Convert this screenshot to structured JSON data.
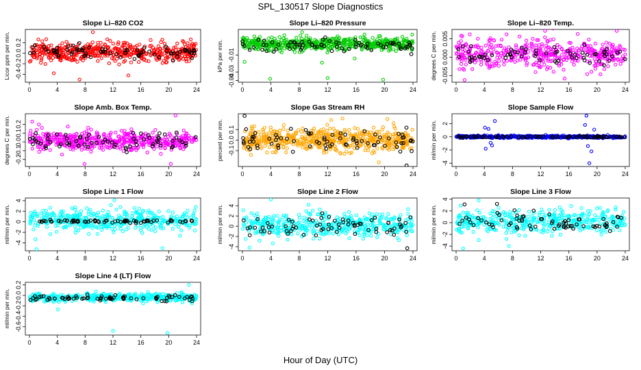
{
  "figure": {
    "title": "SPL_130517  Slope Diagnostics",
    "xlabel": "Hour of Day (UTC)"
  },
  "chart_data": [
    {
      "type": "scatter",
      "title": "Slope Li–820 CO2",
      "ylabel": "Licor ppm per min.",
      "xlim": [
        0,
        24
      ],
      "ylim": [
        -0.55,
        0.45
      ],
      "xticks": [
        "0",
        "4",
        "8",
        "12",
        "16",
        "20",
        "24"
      ],
      "yticks": [
        {
          "v": -0.4,
          "label": "-0.4"
        },
        {
          "v": -0.2,
          "label": "-0.2"
        },
        {
          "v": 0.0,
          "label": "0.0"
        },
        {
          "v": 0.2,
          "label": "0.2"
        }
      ],
      "series": [
        {
          "color": "#ff0000",
          "n": 520,
          "center": 0.02,
          "spread": 0.12,
          "outliers": [
            [
              7.2,
              -0.5
            ],
            [
              9.1,
              0.4
            ],
            [
              3.5,
              -0.38
            ],
            [
              14.2,
              -0.42
            ]
          ]
        },
        {
          "color": "#000000",
          "n": 75,
          "center": 0.02,
          "spread": 0.1,
          "outliers": []
        }
      ]
    },
    {
      "type": "scatter",
      "title": "Slope Li–820 Pressure",
      "ylabel": "kPa per min.",
      "xlim": [
        0,
        24
      ],
      "ylim": [
        -0.042,
        0.02
      ],
      "xticks": [
        "0",
        "4",
        "8",
        "12",
        "16",
        "20",
        "24"
      ],
      "yticks": [
        {
          "v": -0.04,
          "label": "-0.04"
        },
        {
          "v": -0.03,
          "label": "-0.03"
        },
        {
          "v": -0.01,
          "label": "-0.01"
        }
      ],
      "series": [
        {
          "color": "#00cc00",
          "n": 520,
          "center": 0.003,
          "spread": 0.005,
          "outliers": [
            [
              0.3,
              -0.018
            ],
            [
              3.9,
              -0.038
            ],
            [
              12.0,
              -0.037
            ],
            [
              19.8,
              -0.039
            ],
            [
              11.2,
              -0.019
            ],
            [
              15.8,
              -0.014
            ]
          ]
        },
        {
          "color": "#000000",
          "n": 75,
          "center": 0.002,
          "spread": 0.005,
          "outliers": []
        }
      ]
    },
    {
      "type": "scatter",
      "title": "Slope Li–820 Temp.",
      "ylabel": "degrees C per min.",
      "xlim": [
        0,
        24
      ],
      "ylim": [
        -0.0068,
        0.0075
      ],
      "xticks": [
        "0",
        "4",
        "8",
        "12",
        "16",
        "20",
        "24"
      ],
      "yticks": [
        {
          "v": -0.005,
          "label": "-0.005"
        },
        {
          "v": 0.0,
          "label": "0.000"
        },
        {
          "v": 0.005,
          "label": "0.005"
        }
      ],
      "series": [
        {
          "color": "#ff00ff",
          "n": 480,
          "center": 0.001,
          "spread": 0.0026,
          "outliers": [
            [
              1.2,
              -0.0062
            ],
            [
              15.4,
              -0.0058
            ],
            [
              22.8,
              0.0071
            ]
          ]
        },
        {
          "color": "#000000",
          "n": 65,
          "center": 0.0008,
          "spread": 0.0018,
          "outliers": []
        }
      ]
    },
    {
      "type": "scatter",
      "title": "Slope Amb. Box Temp.",
      "ylabel": "degrees C per min.",
      "xlim": [
        0,
        24
      ],
      "ylim": [
        -0.28,
        0.32
      ],
      "xticks": [
        "0",
        "4",
        "8",
        "12",
        "16",
        "20",
        "24"
      ],
      "yticks": [
        {
          "v": -0.2,
          "label": "-0.2"
        },
        {
          "v": -0.1,
          "label": "-0.1"
        },
        {
          "v": 0.0,
          "label": "0.0"
        },
        {
          "v": 0.1,
          "label": "0.1"
        },
        {
          "v": 0.2,
          "label": "0.2"
        }
      ],
      "series": [
        {
          "color": "#ff00ff",
          "n": 500,
          "center": 0.01,
          "spread": 0.075,
          "outliers": [
            [
              0.4,
              0.23
            ],
            [
              7.9,
              -0.25
            ],
            [
              21.0,
              0.3
            ],
            [
              20.3,
              -0.25
            ]
          ]
        },
        {
          "color": "#000000",
          "n": 70,
          "center": 0.0,
          "spread": 0.07,
          "outliers": []
        }
      ]
    },
    {
      "type": "scatter",
      "title": "Slope Gas Stream RH",
      "ylabel": "percent per min.",
      "xlim": [
        0,
        24
      ],
      "ylim": [
        -0.25,
        0.25
      ],
      "xticks": [
        "0",
        "4",
        "8",
        "12",
        "16",
        "20",
        "24"
      ],
      "yticks": [
        {
          "v": -0.1,
          "label": "-0.1"
        },
        {
          "v": 0.0,
          "label": "0.0"
        },
        {
          "v": 0.1,
          "label": "0.1"
        }
      ],
      "series": [
        {
          "color": "#ffa500",
          "n": 560,
          "center": 0.0,
          "spread": 0.07,
          "outliers": [
            [
              1.2,
              -0.14
            ],
            [
              12.5,
              0.19
            ],
            [
              19.2,
              -0.21
            ],
            [
              20.4,
              0.2
            ]
          ]
        },
        {
          "color": "#000000",
          "n": 75,
          "center": 0.0,
          "spread": 0.06,
          "outliers": [
            [
              0.3,
              0.23
            ],
            [
              23.1,
              -0.24
            ]
          ]
        }
      ]
    },
    {
      "type": "scatter",
      "title": "Slope Sample Flow",
      "ylabel": "ml/min per min.",
      "xlim": [
        0,
        24
      ],
      "ylim": [
        -4.5,
        3.5
      ],
      "xticks": [
        "0",
        "4",
        "8",
        "12",
        "16",
        "20",
        "24"
      ],
      "yticks": [
        {
          "v": -4,
          "label": "-4"
        },
        {
          "v": -2,
          "label": "-2"
        },
        {
          "v": 0,
          "label": "0"
        },
        {
          "v": 2,
          "label": "2"
        }
      ],
      "series": [
        {
          "color": "#0000ff",
          "n": 480,
          "center": 0.0,
          "spread": 0.12,
          "outliers": [
            [
              4.2,
              -1.8
            ],
            [
              4.6,
              1.2
            ],
            [
              4.9,
              -0.9
            ],
            [
              5.5,
              2.4
            ],
            [
              5.1,
              -1.3
            ],
            [
              18.5,
              3.2
            ],
            [
              18.9,
              -4.0
            ],
            [
              18.3,
              1.8
            ],
            [
              19.2,
              -2.2
            ],
            [
              19.6,
              1.1
            ],
            [
              18.7,
              -1.4
            ],
            [
              4.1,
              1.4
            ]
          ]
        },
        {
          "color": "#000000",
          "n": 75,
          "center": 0.0,
          "spread": 0.08,
          "outliers": []
        }
      ]
    },
    {
      "type": "scatter",
      "title": "Slope Line 1 Flow",
      "ylabel": "ml/min per min.",
      "xlim": [
        0,
        24
      ],
      "ylim": [
        -5.5,
        4.5
      ],
      "xticks": [
        "0",
        "4",
        "8",
        "12",
        "16",
        "20",
        "24"
      ],
      "yticks": [
        {
          "v": -4,
          "label": "-4"
        },
        {
          "v": -2,
          "label": "-2"
        },
        {
          "v": 0,
          "label": "0"
        },
        {
          "v": 2,
          "label": "2"
        },
        {
          "v": 4,
          "label": "4"
        }
      ],
      "series": [
        {
          "color": "#00ffff",
          "n": 420,
          "center": 0.3,
          "spread": 1.4,
          "outliers": [
            [
              1.0,
              -5.2
            ],
            [
              12.2,
              4.1
            ],
            [
              19.1,
              -5.0
            ]
          ]
        },
        {
          "color": "#000000",
          "n": 70,
          "center": 0.1,
          "spread": 0.2,
          "outliers": []
        }
      ]
    },
    {
      "type": "scatter",
      "title": "Slope Line 2 Flow",
      "ylabel": "ml/min per min.",
      "xlim": [
        0,
        24
      ],
      "ylim": [
        -4.8,
        5.5
      ],
      "xticks": [
        "0",
        "4",
        "8",
        "12",
        "16",
        "20",
        "24"
      ],
      "yticks": [
        {
          "v": -4,
          "label": "-4"
        },
        {
          "v": -2,
          "label": "-2"
        },
        {
          "v": 0,
          "label": "0"
        },
        {
          "v": 2,
          "label": "2"
        },
        {
          "v": 4,
          "label": "4"
        }
      ],
      "series": [
        {
          "color": "#00ffff",
          "n": 440,
          "center": 0.2,
          "spread": 1.5,
          "outliers": [
            [
              1.0,
              -4.2
            ],
            [
              4.0,
              5.2
            ],
            [
              9.3,
              4.2
            ]
          ]
        },
        {
          "color": "#000000",
          "n": 70,
          "center": 0.0,
          "spread": 1.4,
          "outliers": [
            [
              23.2,
              -4.3
            ]
          ]
        }
      ]
    },
    {
      "type": "scatter",
      "title": "Slope Line 3 Flow",
      "ylabel": "ml/min per min.",
      "xlim": [
        0,
        24
      ],
      "ylim": [
        -4.8,
        4.2
      ],
      "xticks": [
        "0",
        "4",
        "8",
        "12",
        "16",
        "20",
        "24"
      ],
      "yticks": [
        {
          "v": -4,
          "label": "-4"
        },
        {
          "v": -2,
          "label": "-2"
        },
        {
          "v": 0,
          "label": "0"
        },
        {
          "v": 2,
          "label": "2"
        },
        {
          "v": 4,
          "label": "4"
        }
      ],
      "series": [
        {
          "color": "#00ffff",
          "n": 420,
          "center": 0.2,
          "spread": 1.3,
          "outliers": [
            [
              1.0,
              -4.4
            ],
            [
              3.2,
              3.8
            ],
            [
              7.5,
              -4.0
            ]
          ]
        },
        {
          "color": "#000000",
          "n": 70,
          "center": 0.0,
          "spread": 1.2,
          "outliers": [
            [
              1.2,
              3.1
            ],
            [
              5.8,
              3.2
            ]
          ]
        }
      ]
    },
    {
      "type": "scatter",
      "title": "Slope Line 4 (LT) Flow",
      "ylabel": "ml/min per min.",
      "xlim": [
        0,
        24
      ],
      "ylim": [
        -0.76,
        0.25
      ],
      "xticks": [
        "0",
        "4",
        "8",
        "12",
        "16",
        "20",
        "24"
      ],
      "yticks": [
        {
          "v": -0.6,
          "label": "-0.6"
        },
        {
          "v": -0.4,
          "label": "-0.4"
        },
        {
          "v": -0.2,
          "label": "-0.2"
        },
        {
          "v": 0.0,
          "label": "0.0"
        },
        {
          "v": 0.2,
          "label": "0.2"
        }
      ],
      "series": [
        {
          "color": "#00ffff",
          "n": 420,
          "center": -0.04,
          "spread": 0.05,
          "outliers": [
            [
              4.1,
              -0.27
            ],
            [
              12.0,
              -0.68
            ],
            [
              19.8,
              -0.72
            ],
            [
              22.9,
              0.2
            ]
          ]
        },
        {
          "color": "#000000",
          "n": 70,
          "center": -0.05,
          "spread": 0.04,
          "outliers": []
        }
      ]
    }
  ]
}
